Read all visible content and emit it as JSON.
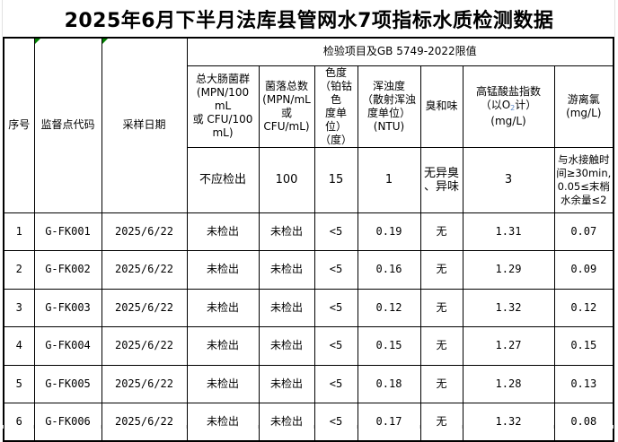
{
  "title": "2025年6月下半月法库县管网水7项指标水质检测数据",
  "table": {
    "header": {
      "col_serial": "序号",
      "col_site_code": "监督点代码",
      "col_sample_date": "采样日期",
      "group_title": "检验项目及GB 5749-2022限值",
      "parameters": [
        {
          "name": "总大肠菌群\n(MPN/100 mL\n或 CFU/100\nmL)",
          "limit": "不应检出"
        },
        {
          "name": "菌落总数\n(MPN/mL\n或\nCFU/mL)",
          "limit": "100"
        },
        {
          "name": "色度\n（铂钴色\n度单位）\n（度）",
          "limit": "15"
        },
        {
          "name": "浑浊度\n（散射浑浊\n度单位）\n(NTU)",
          "limit": "1"
        },
        {
          "name": "臭和味",
          "limit": "无异臭\n、异味"
        },
        {
          "name_pre": "高锰酸盐指数\n（以O",
          "name_sub": "2",
          "name_post": "计）\n(mg/L)",
          "limit": "3"
        },
        {
          "name": "游离氯\n(mg/L)",
          "limit": "与水接触时\n间≥30min,\n0.05≤末梢\n水余量≤2"
        }
      ]
    },
    "rows": [
      [
        "1",
        "G-FK001",
        "2025/6/22",
        "未检出",
        "未检出",
        "<5",
        "0.19",
        "无",
        "1.31",
        "0.07"
      ],
      [
        "2",
        "G-FK002",
        "2025/6/22",
        "未检出",
        "未检出",
        "<5",
        "0.16",
        "无",
        "1.29",
        "0.09"
      ],
      [
        "3",
        "G-FK003",
        "2025/6/22",
        "未检出",
        "未检出",
        "<5",
        "0.12",
        "无",
        "1.32",
        "0.12"
      ],
      [
        "4",
        "G-FK004",
        "2025/6/22",
        "未检出",
        "未检出",
        "<5",
        "0.15",
        "无",
        "1.27",
        "0.15"
      ],
      [
        "5",
        "G-FK005",
        "2025/6/22",
        "未检出",
        "未检出",
        "<5",
        "0.18",
        "无",
        "1.28",
        "0.13"
      ],
      [
        "6",
        "G-FK006",
        "2025/6/22",
        "未检出",
        "未检出",
        "<5",
        "0.17",
        "无",
        "1.32",
        "0.08"
      ]
    ]
  },
  "cell_flags": {
    "color": "#008000",
    "flagged_headers": [
      "监督点代码",
      "采样日期"
    ]
  },
  "colors": {
    "border": "#000000",
    "background": "#ffffff",
    "text": "#000000",
    "faint_gridline": "#e2e2e2"
  }
}
